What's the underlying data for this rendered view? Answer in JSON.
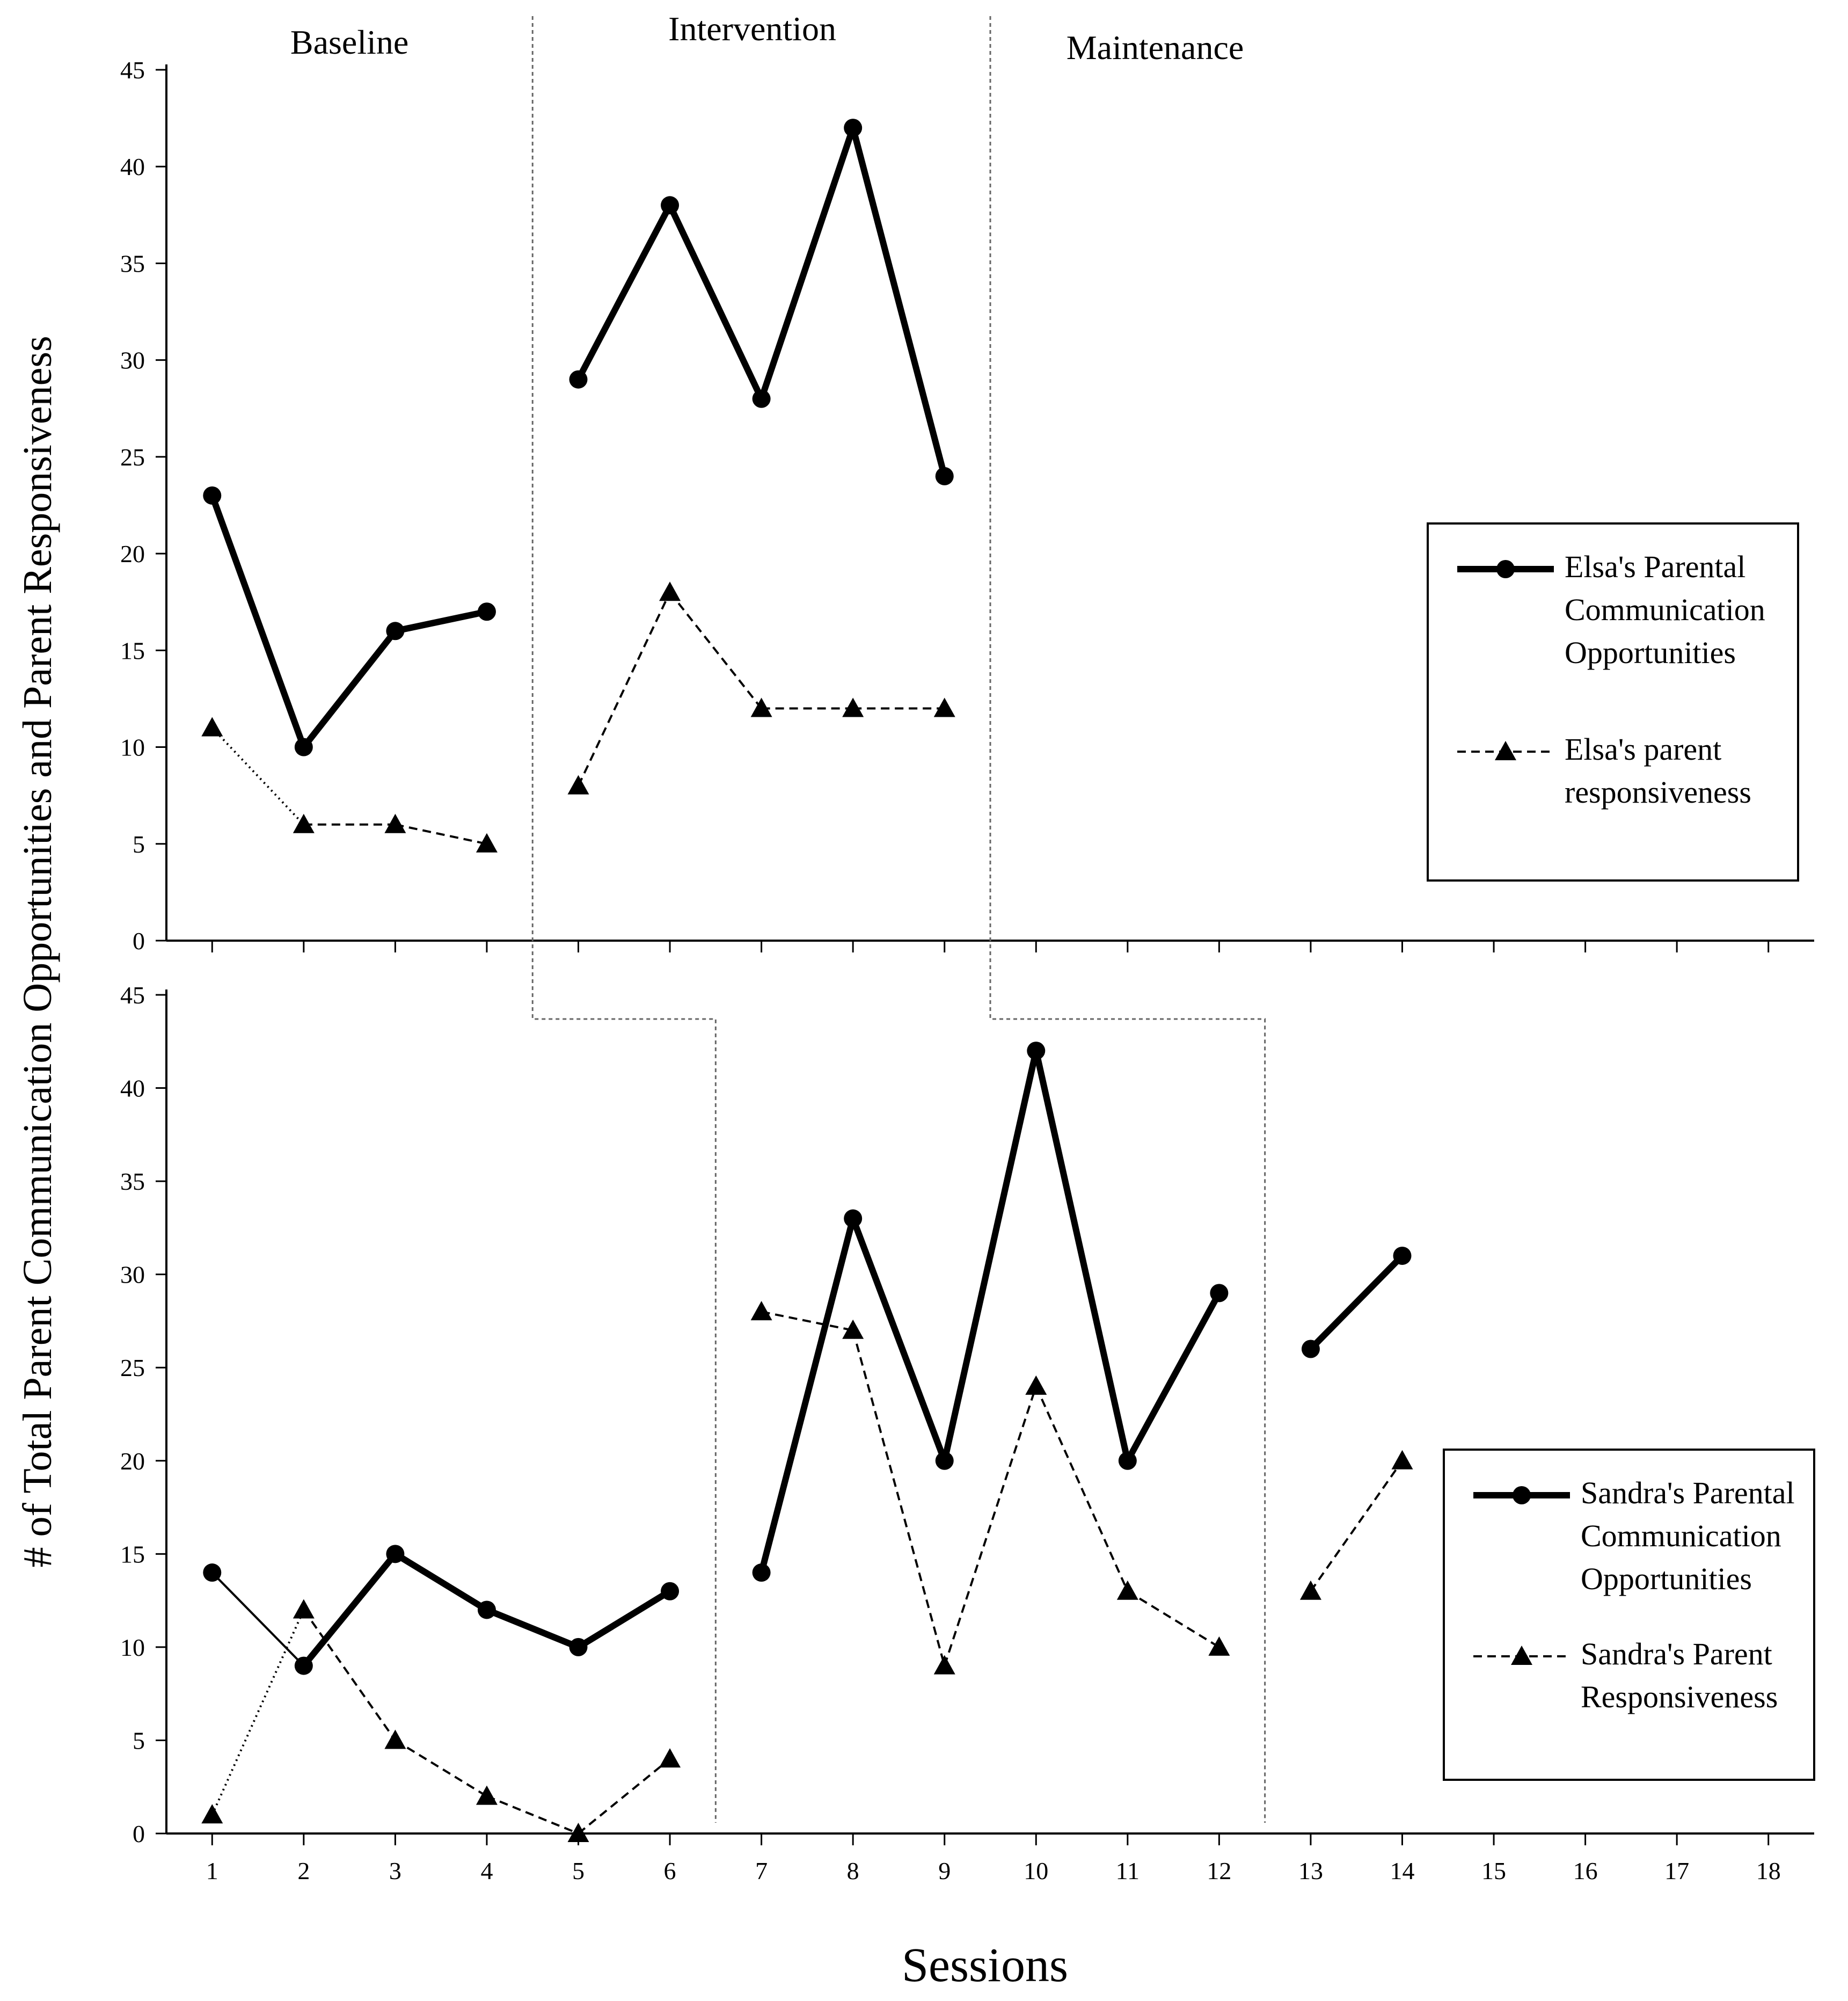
{
  "chart_data": {
    "type": "line",
    "ylabel": "# of Total Parent Communication Opportunities and Parent Responsiveness",
    "xlabel": "Sessions",
    "phases": [
      "Baseline",
      "Intervention",
      "Maintenance"
    ],
    "x_ticks": [
      "1",
      "2",
      "3",
      "4",
      "5",
      "6",
      "7",
      "8",
      "9",
      "10",
      "11",
      "12",
      "13",
      "14",
      "15",
      "16",
      "17",
      "18"
    ],
    "y_ticks": [
      "0",
      "5",
      "10",
      "15",
      "20",
      "25",
      "30",
      "35",
      "40",
      "45"
    ],
    "ylim": [
      0,
      45
    ],
    "xlim": [
      0.5,
      18.5
    ],
    "panels": [
      {
        "participant": "Elsa",
        "series": [
          {
            "name": "Elsa's Parental Communication Opportunities",
            "legend_lines": [
              "Elsa's Parental",
              "Communication",
              "Opportunities"
            ],
            "marker": "circle",
            "line": "solid-thick",
            "segments": [
              [
                [
                  1,
                  23
                ],
                [
                  2,
                  10
                ],
                [
                  3,
                  16
                ],
                [
                  4,
                  17
                ]
              ],
              [
                [
                  5,
                  29
                ],
                [
                  6,
                  38
                ],
                [
                  7,
                  28
                ],
                [
                  8,
                  42
                ],
                [
                  9,
                  24
                ]
              ]
            ]
          },
          {
            "name": "Elsa's parent responsiveness",
            "legend_lines": [
              "Elsa's parent",
              "responsiveness"
            ],
            "marker": "triangle",
            "line": "dashed",
            "segments": [
              [
                [
                  1,
                  11
                ],
                [
                  2,
                  6
                ],
                [
                  3,
                  6
                ],
                [
                  4,
                  5
                ]
              ],
              [
                [
                  5,
                  8
                ],
                [
                  6,
                  18
                ],
                [
                  7,
                  12
                ],
                [
                  8,
                  12
                ],
                [
                  9,
                  12
                ]
              ]
            ]
          }
        ],
        "phase_change_after": [
          4.5,
          9.5
        ]
      },
      {
        "participant": "Sandra",
        "series": [
          {
            "name": "Sandra's Parental Communication Opportunities",
            "legend_lines": [
              "Sandra's Parental",
              "Communication",
              "Opportunities"
            ],
            "marker": "circle",
            "line": "solid-thick",
            "segments": [
              [
                [
                  1,
                  14
                ],
                [
                  2,
                  9
                ],
                [
                  3,
                  15
                ],
                [
                  4,
                  12
                ],
                [
                  5,
                  10
                ],
                [
                  6,
                  13
                ]
              ],
              [
                [
                  7,
                  14
                ],
                [
                  8,
                  33
                ],
                [
                  9,
                  20
                ],
                [
                  10,
                  42
                ],
                [
                  11,
                  20
                ],
                [
                  12,
                  29
                ]
              ],
              [
                [
                  13,
                  26
                ],
                [
                  14,
                  31
                ]
              ]
            ]
          },
          {
            "name": "Sandra's Parent Responsiveness",
            "legend_lines": [
              "Sandra's Parent",
              "Responsiveness"
            ],
            "marker": "triangle",
            "line": "dashed",
            "segments": [
              [
                [
                  1,
                  1
                ],
                [
                  2,
                  12
                ],
                [
                  3,
                  5
                ],
                [
                  4,
                  2
                ],
                [
                  5,
                  0
                ],
                [
                  6,
                  4
                ]
              ],
              [
                [
                  7,
                  28
                ],
                [
                  8,
                  27
                ],
                [
                  9,
                  9
                ],
                [
                  10,
                  24
                ],
                [
                  11,
                  13
                ],
                [
                  12,
                  10
                ]
              ],
              [
                [
                  13,
                  13
                ],
                [
                  14,
                  20
                ]
              ]
            ]
          }
        ],
        "phase_change_after": [
          6.5,
          12.5
        ]
      }
    ]
  }
}
